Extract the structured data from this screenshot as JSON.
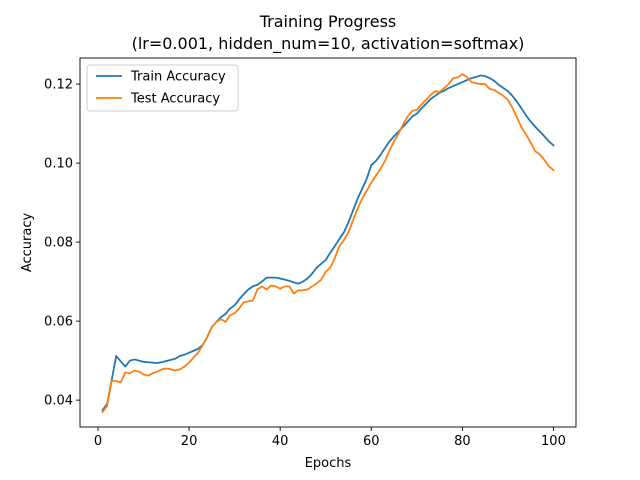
{
  "chart_data": {
    "type": "line",
    "title": "Training Progress",
    "subtitle": "(lr=0.001, hidden_num=10, activation=softmax)",
    "xlabel": "Epochs",
    "ylabel": "Accuracy",
    "xlim": [
      -3.95,
      104.95
    ],
    "ylim": [
      0.0332,
      0.1266
    ],
    "x_ticks": [
      0,
      20,
      40,
      60,
      80,
      100
    ],
    "y_ticks": [
      0.04,
      0.06,
      0.08,
      0.1,
      0.12
    ],
    "x_tick_labels": [
      "0",
      "20",
      "40",
      "60",
      "80",
      "100"
    ],
    "y_tick_labels": [
      "0.04",
      "0.06",
      "0.08",
      "0.10",
      "0.12"
    ],
    "grid": false,
    "legend_position": "upper-left",
    "series": [
      {
        "name": "Train Accuracy",
        "color": "#1f77b4",
        "x": [
          1,
          2,
          3,
          4,
          5,
          6,
          7,
          8,
          9,
          10,
          11,
          12,
          13,
          14,
          15,
          16,
          17,
          18,
          19,
          20,
          21,
          22,
          23,
          24,
          25,
          26,
          27,
          28,
          29,
          30,
          31,
          32,
          33,
          34,
          35,
          36,
          37,
          38,
          39,
          40,
          41,
          42,
          43,
          44,
          45,
          46,
          47,
          48,
          49,
          50,
          51,
          52,
          53,
          54,
          55,
          56,
          57,
          58,
          59,
          60,
          61,
          62,
          63,
          64,
          65,
          66,
          67,
          68,
          69,
          70,
          71,
          72,
          73,
          74,
          75,
          76,
          77,
          78,
          79,
          80,
          81,
          82,
          83,
          84,
          85,
          86,
          87,
          88,
          89,
          90,
          91,
          92,
          93,
          94,
          95,
          96,
          97,
          98,
          99,
          100
        ],
        "values": [
          0.0375,
          0.039,
          0.045,
          0.0512,
          0.0498,
          0.0485,
          0.05,
          0.0503,
          0.05,
          0.0497,
          0.0496,
          0.0495,
          0.0494,
          0.0496,
          0.0499,
          0.0502,
          0.0505,
          0.0512,
          0.0515,
          0.052,
          0.0525,
          0.053,
          0.054,
          0.056,
          0.0585,
          0.0598,
          0.061,
          0.0618,
          0.0632,
          0.064,
          0.0655,
          0.0668,
          0.068,
          0.0688,
          0.0692,
          0.07,
          0.071,
          0.071,
          0.071,
          0.0708,
          0.0705,
          0.0702,
          0.0698,
          0.0695,
          0.07,
          0.0708,
          0.072,
          0.0735,
          0.0745,
          0.0755,
          0.0773,
          0.079,
          0.0808,
          0.0825,
          0.085,
          0.088,
          0.091,
          0.0935,
          0.096,
          0.0995,
          0.1005,
          0.102,
          0.1038,
          0.1055,
          0.1068,
          0.108,
          0.1092,
          0.1105,
          0.1118,
          0.1125,
          0.1138,
          0.115,
          0.1162,
          0.117,
          0.1178,
          0.1183,
          0.119,
          0.1195,
          0.12,
          0.1205,
          0.121,
          0.1215,
          0.1218,
          0.1222,
          0.122,
          0.1215,
          0.1208,
          0.1198,
          0.119,
          0.1182,
          0.117,
          0.1155,
          0.1138,
          0.112,
          0.1105,
          0.1092,
          0.108,
          0.1068,
          0.1055,
          0.1045
        ]
      },
      {
        "name": "Test Accuracy",
        "color": "#ff7f0e",
        "x": [
          1,
          2,
          3,
          4,
          5,
          6,
          7,
          8,
          9,
          10,
          11,
          12,
          13,
          14,
          15,
          16,
          17,
          18,
          19,
          20,
          21,
          22,
          23,
          24,
          25,
          26,
          27,
          28,
          29,
          30,
          31,
          32,
          33,
          34,
          35,
          36,
          37,
          38,
          39,
          40,
          41,
          42,
          43,
          44,
          45,
          46,
          47,
          48,
          49,
          50,
          51,
          52,
          53,
          54,
          55,
          56,
          57,
          58,
          59,
          60,
          61,
          62,
          63,
          64,
          65,
          66,
          67,
          68,
          69,
          70,
          71,
          72,
          73,
          74,
          75,
          76,
          77,
          78,
          79,
          80,
          81,
          82,
          83,
          84,
          85,
          86,
          87,
          88,
          89,
          90,
          91,
          92,
          93,
          94,
          95,
          96,
          97,
          98,
          99,
          100
        ],
        "values": [
          0.037,
          0.0385,
          0.045,
          0.0448,
          0.0445,
          0.047,
          0.0468,
          0.0475,
          0.0472,
          0.0465,
          0.0462,
          0.0468,
          0.0472,
          0.0478,
          0.048,
          0.0478,
          0.0475,
          0.0478,
          0.0485,
          0.0495,
          0.0508,
          0.052,
          0.054,
          0.056,
          0.0585,
          0.0598,
          0.0605,
          0.0598,
          0.0615,
          0.062,
          0.0632,
          0.0648,
          0.065,
          0.0652,
          0.068,
          0.0688,
          0.068,
          0.069,
          0.0688,
          0.0682,
          0.0688,
          0.0688,
          0.067,
          0.0678,
          0.0678,
          0.068,
          0.0688,
          0.0695,
          0.0705,
          0.0725,
          0.0735,
          0.076,
          0.079,
          0.0805,
          0.0825,
          0.0855,
          0.0885,
          0.091,
          0.093,
          0.095,
          0.0968,
          0.0985,
          0.1005,
          0.1032,
          0.1055,
          0.1075,
          0.1098,
          0.1118,
          0.1132,
          0.1135,
          0.1148,
          0.116,
          0.1172,
          0.1182,
          0.118,
          0.119,
          0.12,
          0.1215,
          0.1217,
          0.1225,
          0.1218,
          0.1205,
          0.1202,
          0.12,
          0.12,
          0.1188,
          0.1185,
          0.1178,
          0.117,
          0.116,
          0.114,
          0.1115,
          0.109,
          0.1072,
          0.1052,
          0.103,
          0.1022,
          0.1008,
          0.0992,
          0.0982
        ]
      }
    ]
  }
}
